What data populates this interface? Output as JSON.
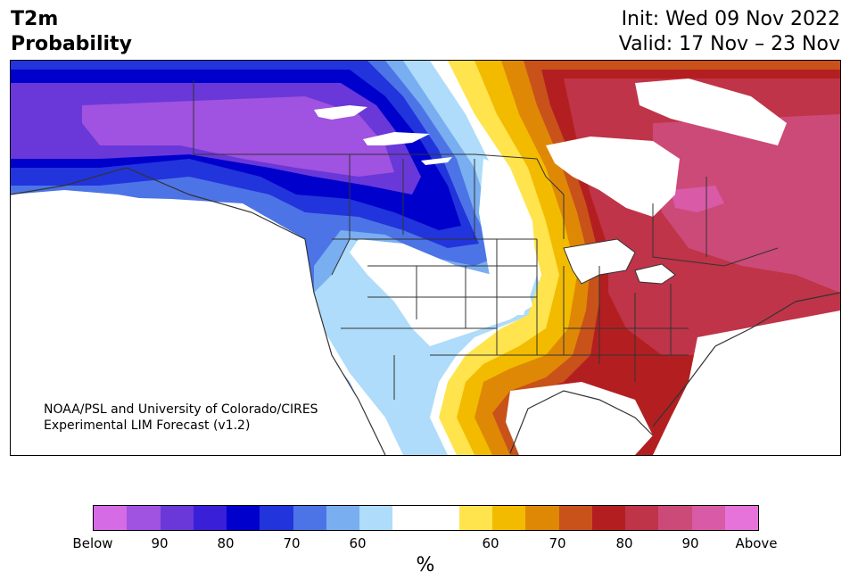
{
  "title": {
    "line1": "T2m",
    "line2": "Probability"
  },
  "init": {
    "line1": "Init: Wed 09 Nov 2022",
    "line2": "Valid: 17 Nov – 23 Nov"
  },
  "credit": {
    "line1": "NOAA/PSL and University of Colorado/CIRES",
    "line2": "Experimental LIM Forecast (v1.2)"
  },
  "colorbar": {
    "unit": "%",
    "colors": [
      "#d66be6",
      "#a052e0",
      "#6a38d8",
      "#3a1fd9",
      "#0000cc",
      "#2234dc",
      "#4d74e6",
      "#79aef0",
      "#aedcfa",
      "#ffffff",
      "#ffffff",
      "#ffe44d",
      "#f2bb00",
      "#df8806",
      "#c8521a",
      "#b31f20",
      "#bf3448",
      "#cc4a78",
      "#d95aa6",
      "#e673d9"
    ],
    "ticks": [
      "Below",
      "90",
      "80",
      "70",
      "60",
      "60",
      "70",
      "80",
      "90",
      "Above"
    ]
  },
  "legend_colors": {
    "cold_extreme": "#d66be6",
    "cold_strong": "#0000cc",
    "warm_strong": "#b31f20",
    "warm_extreme": "#e673d9"
  }
}
